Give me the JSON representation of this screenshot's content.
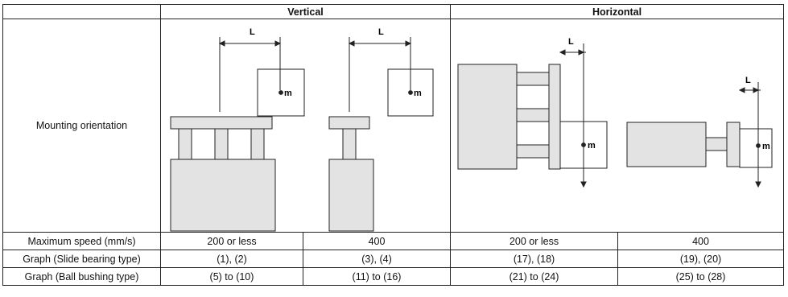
{
  "table": {
    "groups": {
      "vertical": "Vertical",
      "horizontal": "Horizontal"
    },
    "orientation_label": "Mounting orientation",
    "diagram_labels": {
      "L": "L",
      "m": "m"
    },
    "rows": [
      {
        "label": "Maximum speed (mm/s)",
        "cells": [
          "200 or less",
          "400",
          "200 or less",
          "400"
        ]
      },
      {
        "label": "Graph (Slide bearing type)",
        "cells": [
          "(1), (2)",
          "(3), (4)",
          "(17), (18)",
          "(19), (20)"
        ]
      },
      {
        "label": "Graph (Ball bushing type)",
        "cells": [
          "(5) to (10)",
          "(11) to (16)",
          "(21) to (24)",
          "(25) to (28)"
        ]
      }
    ]
  },
  "colors": {
    "fill": "#e3e3e3",
    "line": "#222222",
    "background": "#ffffff"
  }
}
